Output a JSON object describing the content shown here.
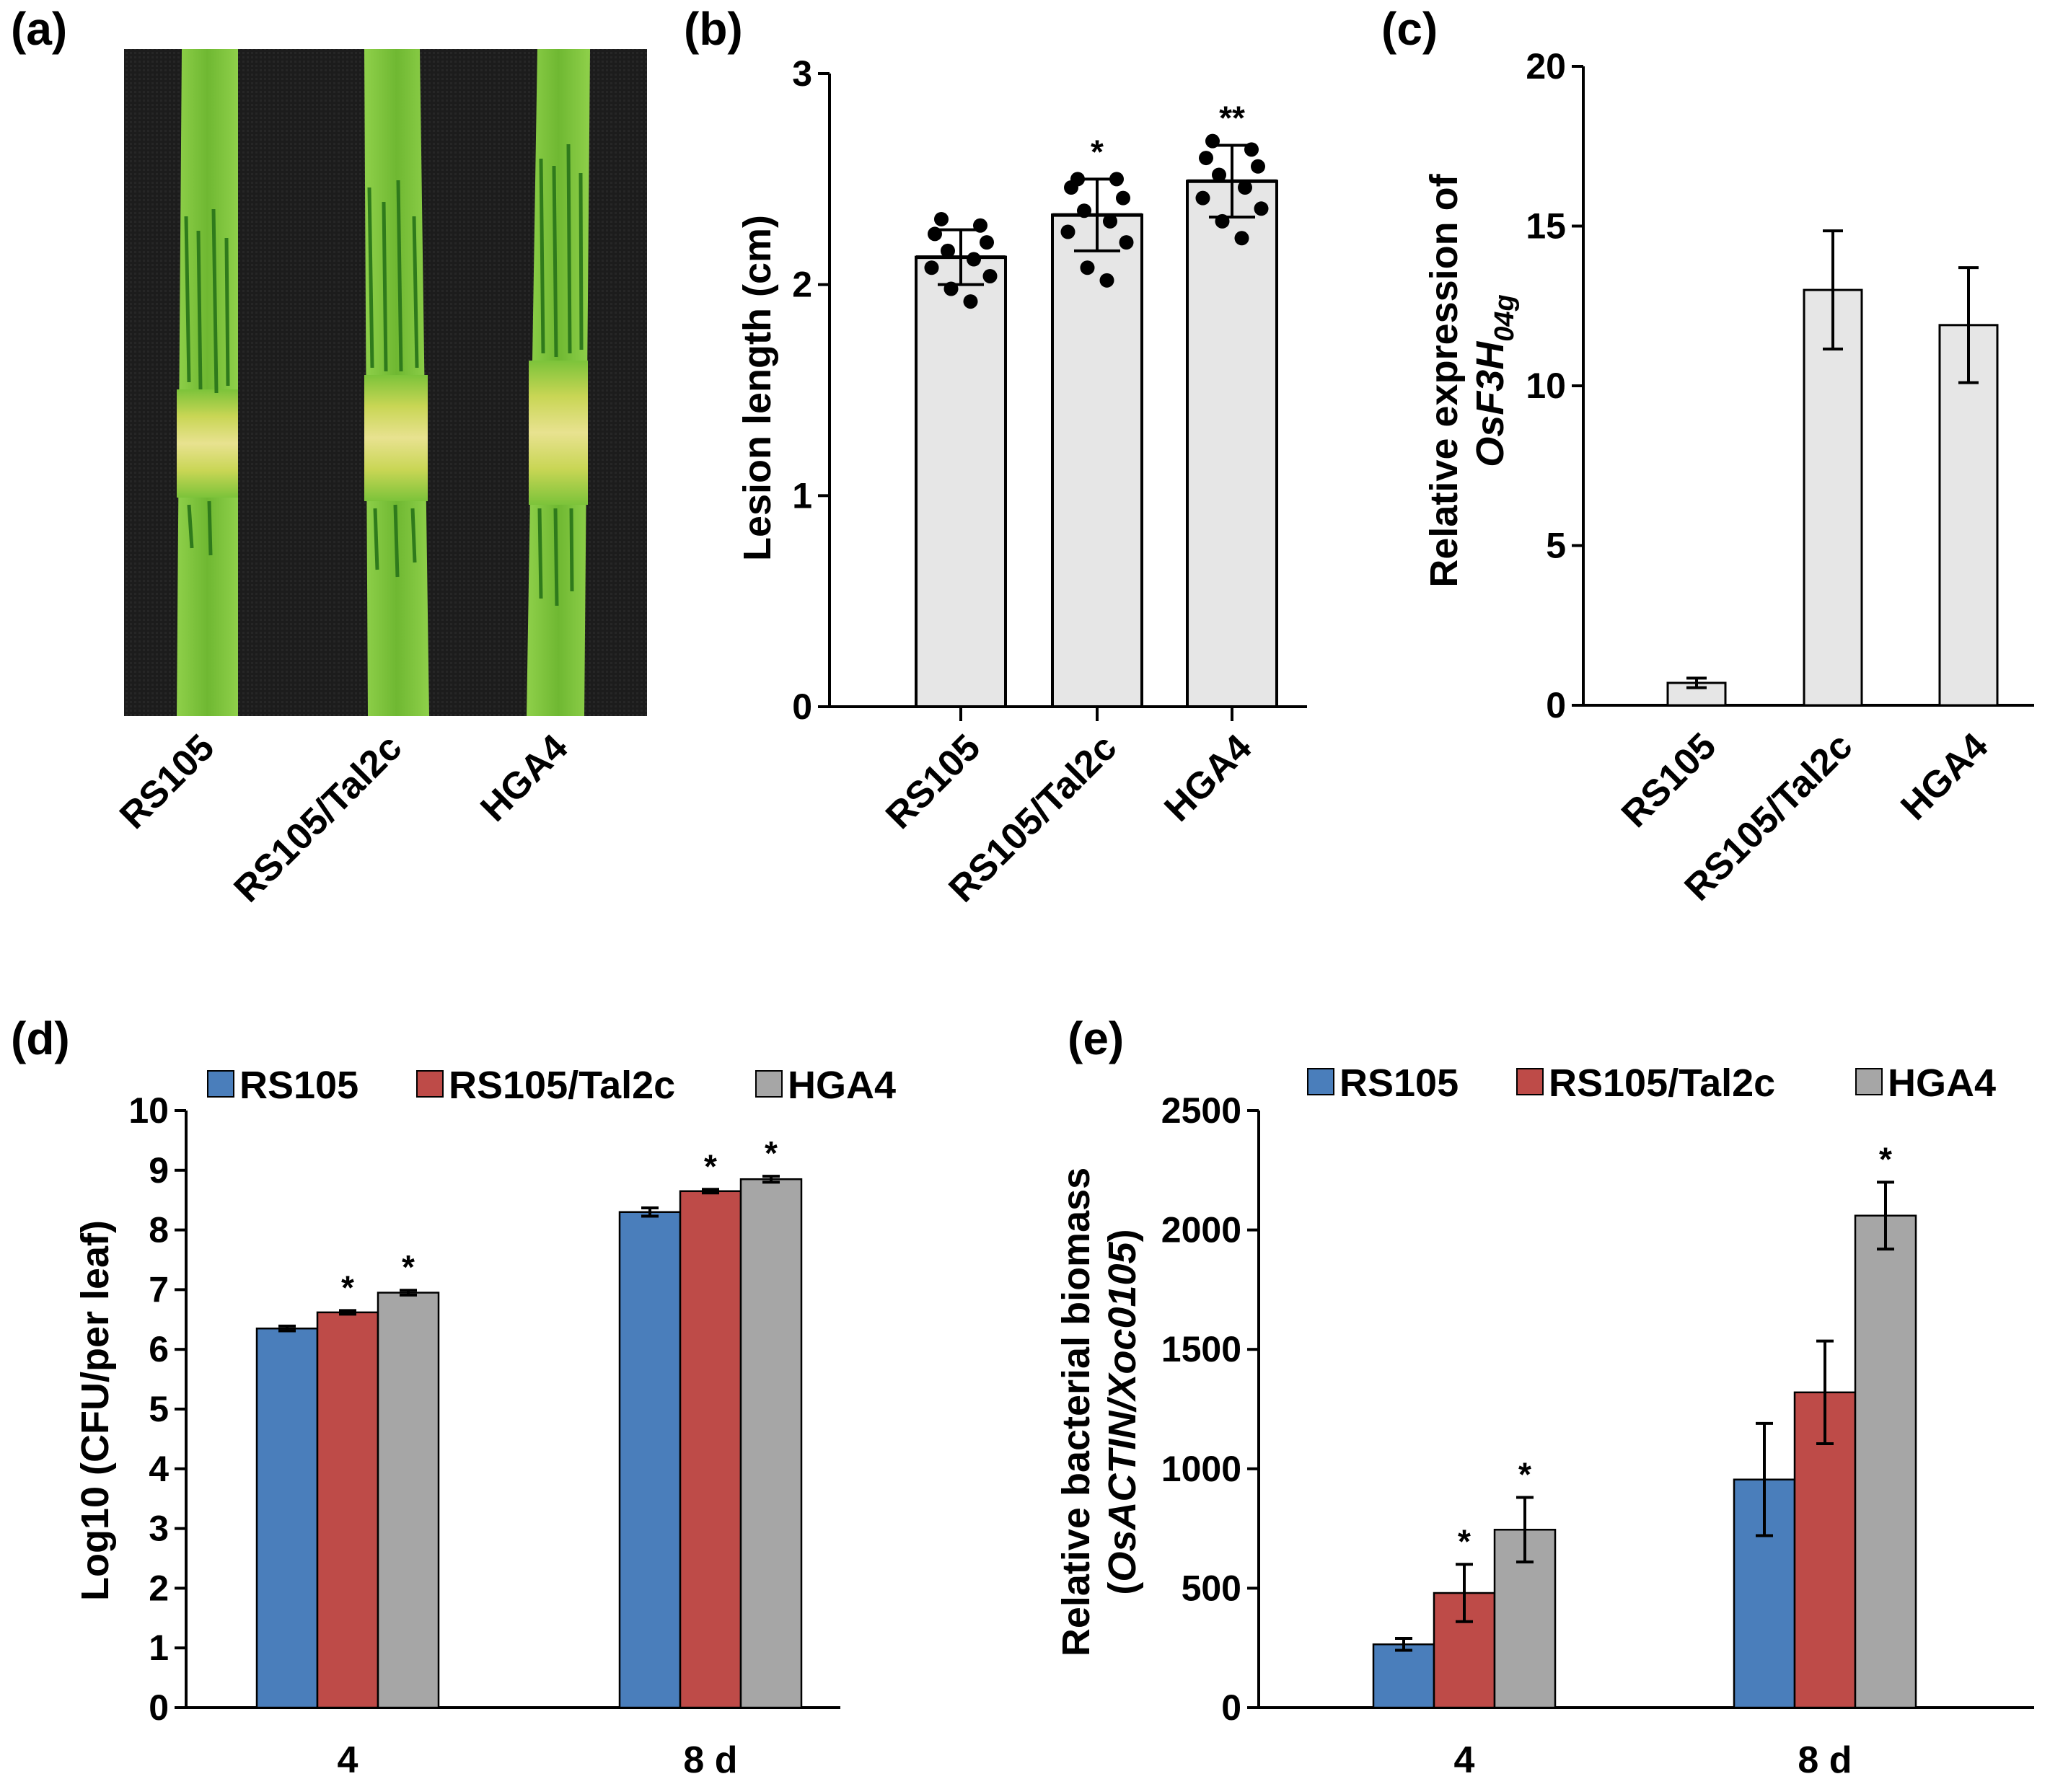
{
  "panels": {
    "a": {
      "letter": "(a)",
      "categories": [
        "RS105",
        "RS105/Tal2c",
        "HGA4"
      ]
    }
  },
  "colors": {
    "rs105": "#4a7ebb",
    "tal2c": "#be4b48",
    "hga4": "#a6a6a6",
    "light_bar": "#e6e6e6",
    "leaf_green": "#7cc33a",
    "cloth": "#1d1d1d"
  },
  "chart_data": [
    {
      "id": "b",
      "letter": "(b)",
      "type": "bar",
      "categories": [
        "RS105",
        "RS105/Tal2c",
        "HGA4"
      ],
      "values": [
        2.13,
        2.33,
        2.49
      ],
      "errors": [
        0.13,
        0.17,
        0.17
      ],
      "significance": [
        "",
        "*",
        "**"
      ],
      "points": [
        [
          2.31,
          2.28,
          2.24,
          2.2,
          2.16,
          2.12,
          2.08,
          2.04,
          1.98,
          1.92
        ],
        [
          2.5,
          2.5,
          2.46,
          2.41,
          2.35,
          2.3,
          2.25,
          2.2,
          2.08,
          2.02
        ],
        [
          2.68,
          2.64,
          2.6,
          2.56,
          2.52,
          2.46,
          2.41,
          2.36,
          2.3,
          2.22
        ]
      ],
      "ylabel": "Lesion length (cm)",
      "ylim": [
        0,
        3
      ],
      "yticks": [
        "0",
        "1",
        "2",
        "3"
      ]
    },
    {
      "id": "c",
      "letter": "(c)",
      "type": "bar",
      "categories": [
        "RS105",
        "RS105/Tal2c",
        "HGA4"
      ],
      "values": [
        0.7,
        13.0,
        11.9
      ],
      "errors": [
        0.15,
        1.85,
        1.8
      ],
      "ylabel_line1": "Relative expression of",
      "ylabel_gene": "OsF3H",
      "ylabel_sub": "04g",
      "ylim": [
        0,
        20
      ],
      "yticks": [
        "0",
        "5",
        "10",
        "15",
        "20"
      ]
    },
    {
      "id": "d",
      "letter": "(d)",
      "type": "bar",
      "categories": [
        "4",
        "8 d"
      ],
      "series": [
        {
          "name": "RS105",
          "values": [
            6.35,
            8.3
          ],
          "errors": [
            0.04,
            0.07
          ],
          "significance": [
            "",
            ""
          ]
        },
        {
          "name": "RS105/Tal2c",
          "values": [
            6.62,
            8.65
          ],
          "errors": [
            0.03,
            0.03
          ],
          "significance": [
            "*",
            "*"
          ]
        },
        {
          "name": "HGA4",
          "values": [
            6.95,
            8.85
          ],
          "errors": [
            0.04,
            0.05
          ],
          "significance": [
            "*",
            "*"
          ]
        }
      ],
      "ylabel": "Log10 (CFU/per leaf)",
      "ylim": [
        0,
        10
      ],
      "yticks": [
        "0",
        "1",
        "2",
        "3",
        "4",
        "5",
        "6",
        "7",
        "8",
        "9",
        "10"
      ]
    },
    {
      "id": "e",
      "letter": "(e)",
      "type": "bar",
      "categories": [
        "4",
        "8 d"
      ],
      "series": [
        {
          "name": "RS105",
          "values": [
            265,
            955
          ],
          "errors": [
            25,
            235
          ],
          "significance": [
            "",
            ""
          ]
        },
        {
          "name": "RS105/Tal2c",
          "values": [
            480,
            1320
          ],
          "errors": [
            120,
            215
          ],
          "significance": [
            "*",
            ""
          ]
        },
        {
          "name": "HGA4",
          "values": [
            745,
            2060
          ],
          "errors": [
            135,
            140
          ],
          "significance": [
            "*",
            "*"
          ]
        }
      ],
      "ylabel_line1": "Relative bacterial biomass",
      "ylabel_line2_open": "(",
      "ylabel_line2_italic": "OsACTIN/Xoc0105",
      "ylabel_line2_close": ")",
      "ylim": [
        0,
        2500
      ],
      "yticks": [
        "0",
        "500",
        "1000",
        "1500",
        "2000",
        "2500"
      ]
    }
  ]
}
